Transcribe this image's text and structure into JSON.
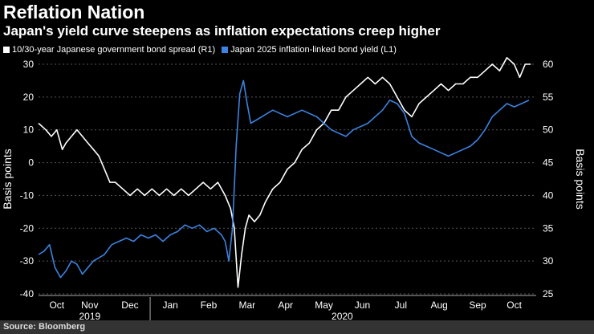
{
  "header": {
    "title": "Reflation Nation",
    "subtitle": "Japan's yield curve steepens as inflation expectations creep higher"
  },
  "source": "Source: Bloomberg",
  "colors": {
    "series_white": "#ffffff",
    "series_blue": "#3d82e0",
    "background": "#000000",
    "grid": "#555555"
  },
  "chart_data": {
    "type": "line",
    "title": "Reflation Nation",
    "subtitle": "Japan's yield curve steepens as inflation expectations creep higher",
    "ylabel_left": "Basis points",
    "ylabel_right": "Basis points",
    "ylim_left": [
      -40,
      30
    ],
    "ylim_right": [
      25,
      60
    ],
    "yticks_left": [
      -40,
      -30,
      -20,
      -10,
      0,
      10,
      20,
      30
    ],
    "yticks_right": [
      25,
      30,
      35,
      40,
      45,
      50,
      55,
      60
    ],
    "x_month_labels": [
      "Oct",
      "Nov",
      "Dec",
      "Jan",
      "Feb",
      "Mar",
      "Apr",
      "May",
      "Jun",
      "Jul",
      "Aug",
      "Sep",
      "Oct"
    ],
    "x_month_positions": [
      0.5,
      1.4,
      2.5,
      3.6,
      4.65,
      5.7,
      6.75,
      7.8,
      8.85,
      9.9,
      10.95,
      12.0,
      13.0
    ],
    "x_year_labels": [
      {
        "label": "2019",
        "pos": 1.4
      },
      {
        "label": "2020",
        "pos": 8.3
      }
    ],
    "xlim": [
      0,
      13.6
    ],
    "grid": "dashed horizontal",
    "series": [
      {
        "name": "10/30-year Japanese government bond spread (R1)",
        "axis": "right",
        "color": "#ffffff",
        "x": [
          0.0,
          0.2,
          0.35,
          0.5,
          0.65,
          0.75,
          0.9,
          1.05,
          1.2,
          1.35,
          1.5,
          1.65,
          1.8,
          1.95,
          2.1,
          2.3,
          2.5,
          2.7,
          2.9,
          3.1,
          3.3,
          3.5,
          3.7,
          3.9,
          4.1,
          4.3,
          4.5,
          4.7,
          4.9,
          5.1,
          5.25,
          5.35,
          5.45,
          5.55,
          5.65,
          5.75,
          5.9,
          6.05,
          6.2,
          6.4,
          6.6,
          6.8,
          7.0,
          7.2,
          7.4,
          7.6,
          7.8,
          8.0,
          8.2,
          8.4,
          8.6,
          8.8,
          9.0,
          9.2,
          9.4,
          9.6,
          9.8,
          10.0,
          10.2,
          10.4,
          10.6,
          10.8,
          11.0,
          11.2,
          11.4,
          11.6,
          11.8,
          12.0,
          12.2,
          12.4,
          12.6,
          12.8,
          13.0,
          13.15,
          13.3,
          13.45
        ],
        "values": [
          51,
          50,
          49,
          50,
          47,
          48,
          49,
          50,
          49,
          48,
          47,
          46,
          44,
          42,
          42,
          41,
          40,
          41,
          40,
          41,
          40,
          41,
          40,
          41,
          40,
          41,
          42,
          41,
          42,
          40,
          38,
          35,
          26,
          31,
          35,
          37,
          36,
          37,
          39,
          41,
          42,
          44,
          45,
          47,
          48,
          50,
          51,
          53,
          53,
          55,
          56,
          57,
          58,
          57,
          58,
          57,
          55,
          53,
          52,
          54,
          55,
          56,
          57,
          56,
          57,
          57,
          58,
          58,
          59,
          60,
          59,
          61,
          60,
          58,
          60,
          60
        ]
      },
      {
        "name": "Japan 2025 inflation-linked bond yield (L1)",
        "axis": "left",
        "color": "#3d82e0",
        "x": [
          0.0,
          0.15,
          0.3,
          0.45,
          0.6,
          0.75,
          0.9,
          1.05,
          1.2,
          1.35,
          1.5,
          1.65,
          1.8,
          2.0,
          2.2,
          2.4,
          2.6,
          2.8,
          3.0,
          3.2,
          3.4,
          3.6,
          3.8,
          4.0,
          4.2,
          4.4,
          4.6,
          4.8,
          5.0,
          5.1,
          5.2,
          5.3,
          5.4,
          5.5,
          5.6,
          5.7,
          5.8,
          5.95,
          6.1,
          6.25,
          6.4,
          6.6,
          6.8,
          7.0,
          7.2,
          7.4,
          7.6,
          7.8,
          8.0,
          8.2,
          8.4,
          8.6,
          8.8,
          9.0,
          9.2,
          9.4,
          9.6,
          9.8,
          10.0,
          10.2,
          10.4,
          10.6,
          10.8,
          11.0,
          11.2,
          11.4,
          11.6,
          11.8,
          12.0,
          12.2,
          12.4,
          12.6,
          12.8,
          13.0,
          13.2,
          13.4
        ],
        "values": [
          -28,
          -27,
          -25,
          -32,
          -35,
          -33,
          -30,
          -31,
          -34,
          -32,
          -30,
          -29,
          -28,
          -25,
          -24,
          -23,
          -24,
          -22,
          -23,
          -22,
          -24,
          -22,
          -21,
          -19,
          -20,
          -19,
          -21,
          -20,
          -22,
          -24,
          -30,
          -20,
          5,
          21,
          25,
          18,
          12,
          13,
          14,
          15,
          16,
          15,
          14,
          15,
          16,
          15,
          14,
          12,
          10,
          9,
          8,
          10,
          11,
          12,
          14,
          16,
          19,
          18,
          15,
          8,
          6,
          5,
          4,
          3,
          2,
          3,
          4,
          5,
          7,
          10,
          14,
          16,
          18,
          17,
          18,
          19
        ]
      }
    ]
  }
}
